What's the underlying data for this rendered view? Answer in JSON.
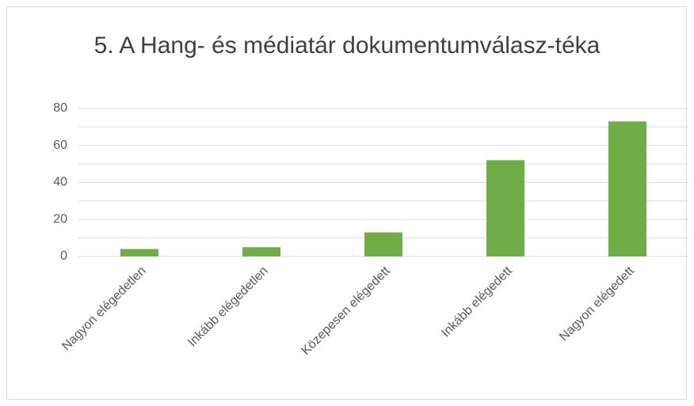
{
  "chart_data": {
    "type": "bar",
    "title": "5. A Hang- és médiatár dokumentumválasz-téka",
    "categories": [
      "Nagyon elégedetlen",
      "Inkább elégedetlen",
      "Közepesen elégedett",
      "Inkább elégedett",
      "Nagyon elégedett"
    ],
    "values": [
      4,
      5,
      13,
      52,
      73
    ],
    "color": "#70ad47",
    "ylim": [
      0,
      80
    ],
    "yticks": [
      0,
      20,
      40,
      60,
      80
    ],
    "minor_yticks": [
      10,
      30,
      50,
      70
    ],
    "grid": true
  }
}
